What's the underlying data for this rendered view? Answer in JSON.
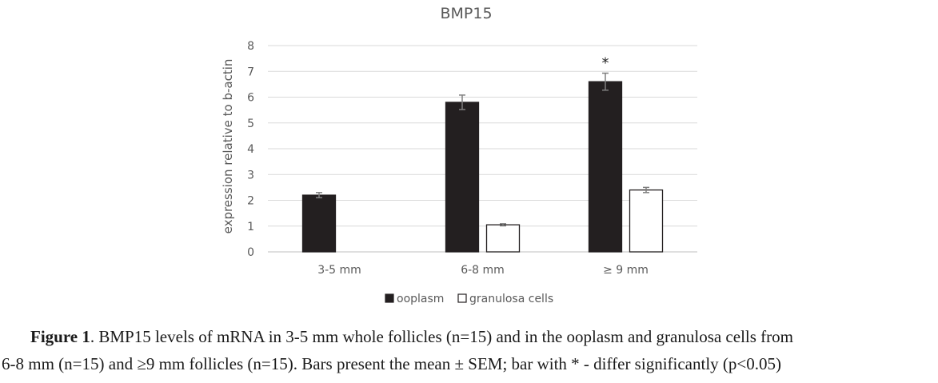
{
  "chart_data": {
    "type": "bar",
    "title": "BMP15",
    "xlabel": "",
    "ylabel": "expression relative to b-actin",
    "ylim": [
      0,
      8
    ],
    "yticks": [
      "0",
      "1",
      "2",
      "3",
      "4",
      "5",
      "6",
      "7",
      "8"
    ],
    "grid": true,
    "legend_position": "bottom",
    "categories": [
      "3-5 mm",
      "6-8  mm",
      "≥ 9 mm"
    ],
    "series": [
      {
        "name": "ooplasm",
        "color": "#231f20",
        "values": [
          2.2,
          5.8,
          6.6
        ],
        "errors": [
          0.1,
          0.28,
          0.33
        ],
        "annotations": [
          "",
          "",
          "*"
        ]
      },
      {
        "name": "granulosa cells",
        "color": "#ffffff",
        "values": [
          null,
          1.05,
          2.4
        ],
        "errors": [
          null,
          0.04,
          0.1
        ],
        "annotations": [
          "",
          "",
          ""
        ]
      }
    ]
  },
  "caption": {
    "label": "Figure 1",
    "line1_rest": ". BMP15 levels of mRNA in 3-5 mm whole follicles (n=15) and in the ooplasm and granulosa cells from",
    "line2": "6-8 mm (n=15) and ≥9 mm follicles (n=15). Bars present the mean ± SEM; bar with * - differ significantly (p<0.05)"
  }
}
